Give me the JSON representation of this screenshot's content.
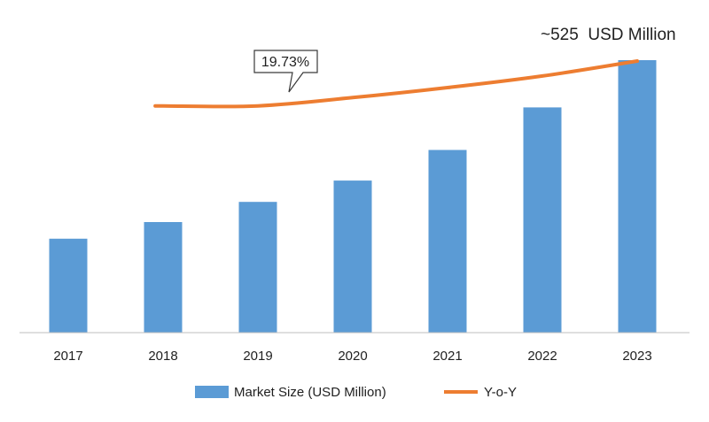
{
  "chart_data": {
    "type": "bar",
    "categories": [
      "2017",
      "2018",
      "2019",
      "2020",
      "2021",
      "2022",
      "2023"
    ],
    "series": [
      {
        "name": "Market Size (USD Million)",
        "type": "bar",
        "values": [
          181,
          213,
          252,
          293,
          352,
          434,
          525
        ]
      },
      {
        "name": "Y-o-Y",
        "type": "line",
        "values": [
          null,
          0.3,
          0.3,
          0.55,
          0.85,
          1.2,
          1.65
        ]
      }
    ],
    "ylim": [
      0,
      525
    ],
    "grid": false,
    "legend_position": "bottom",
    "annotations": {
      "callout": "19.73%",
      "value_note": "~525  USD Million"
    },
    "colors": {
      "bar": "#5B9BD5",
      "line": "#ED7D31",
      "axis": "#bfbfbf",
      "text": "#1f1f1f"
    }
  }
}
